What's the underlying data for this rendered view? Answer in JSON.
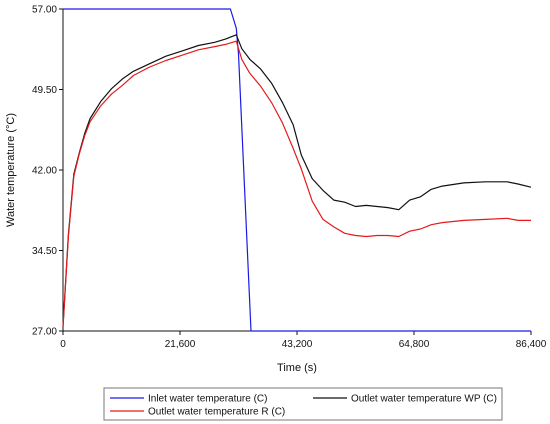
{
  "chart_data": {
    "type": "line",
    "xlabel": "Time (s)",
    "ylabel": "Water temperature (°C)",
    "xlim": [
      0,
      86400
    ],
    "ylim": [
      27.0,
      57.0
    ],
    "x_ticks": [
      0,
      21600,
      43200,
      64800,
      86400
    ],
    "x_tick_labels": [
      "0",
      "21,600",
      "43,200",
      "64,800",
      "86,400"
    ],
    "y_ticks": [
      27.0,
      34.5,
      42.0,
      49.5,
      57.0
    ],
    "y_tick_labels": [
      "27.00",
      "34.50",
      "42.00",
      "49.50",
      "57.00"
    ],
    "grid": false,
    "legend_position": "bottom",
    "series": [
      {
        "name": "Inlet water temperature (C)",
        "color": "#1a1ae6",
        "points": [
          [
            0,
            57.0
          ],
          [
            30900,
            57.0
          ],
          [
            32000,
            55.2
          ],
          [
            32400,
            52.8
          ],
          [
            34700,
            27.0
          ],
          [
            86400,
            27.0
          ]
        ]
      },
      {
        "name": "Outlet water temperature WP (C)",
        "color": "#111111",
        "points": [
          [
            0,
            27.4
          ],
          [
            1000,
            36.0
          ],
          [
            2000,
            41.6
          ],
          [
            3000,
            43.6
          ],
          [
            4000,
            45.4
          ],
          [
            5000,
            46.8
          ],
          [
            7000,
            48.4
          ],
          [
            9000,
            49.6
          ],
          [
            11000,
            50.5
          ],
          [
            13000,
            51.2
          ],
          [
            16000,
            51.9
          ],
          [
            19000,
            52.6
          ],
          [
            22000,
            53.1
          ],
          [
            25000,
            53.6
          ],
          [
            28000,
            53.9
          ],
          [
            30000,
            54.2
          ],
          [
            32000,
            54.6
          ],
          [
            33000,
            53.3
          ],
          [
            34500,
            52.3
          ],
          [
            36500,
            51.4
          ],
          [
            38500,
            50.1
          ],
          [
            40500,
            48.3
          ],
          [
            42500,
            46.2
          ],
          [
            44000,
            43.4
          ],
          [
            46000,
            41.2
          ],
          [
            48000,
            40.1
          ],
          [
            50000,
            39.2
          ],
          [
            52000,
            39.0
          ],
          [
            54000,
            38.6
          ],
          [
            56000,
            38.7
          ],
          [
            58000,
            38.6
          ],
          [
            60000,
            38.5
          ],
          [
            62000,
            38.3
          ],
          [
            64000,
            39.2
          ],
          [
            66000,
            39.5
          ],
          [
            68000,
            40.2
          ],
          [
            70000,
            40.5
          ],
          [
            74000,
            40.8
          ],
          [
            78000,
            40.9
          ],
          [
            82000,
            40.9
          ],
          [
            84000,
            40.7
          ],
          [
            86400,
            40.4
          ]
        ]
      },
      {
        "name": "Outlet water temperature R (C)",
        "color": "#e61a1a",
        "points": [
          [
            0,
            27.4
          ],
          [
            1000,
            35.8
          ],
          [
            2000,
            41.4
          ],
          [
            3000,
            43.5
          ],
          [
            4000,
            45.2
          ],
          [
            5000,
            46.5
          ],
          [
            7000,
            48.0
          ],
          [
            9000,
            49.1
          ],
          [
            11000,
            49.9
          ],
          [
            13000,
            50.8
          ],
          [
            16000,
            51.6
          ],
          [
            19000,
            52.2
          ],
          [
            22000,
            52.7
          ],
          [
            25000,
            53.2
          ],
          [
            28000,
            53.5
          ],
          [
            30000,
            53.7
          ],
          [
            32000,
            54.0
          ],
          [
            33000,
            52.3
          ],
          [
            34500,
            51.0
          ],
          [
            36500,
            49.8
          ],
          [
            38500,
            48.3
          ],
          [
            40500,
            46.4
          ],
          [
            42500,
            44.0
          ],
          [
            44000,
            42.1
          ],
          [
            46000,
            39.1
          ],
          [
            48000,
            37.4
          ],
          [
            50000,
            36.7
          ],
          [
            52000,
            36.1
          ],
          [
            54000,
            35.9
          ],
          [
            56000,
            35.8
          ],
          [
            58000,
            35.9
          ],
          [
            60000,
            35.9
          ],
          [
            62000,
            35.8
          ],
          [
            64000,
            36.3
          ],
          [
            66000,
            36.5
          ],
          [
            68000,
            36.9
          ],
          [
            70000,
            37.1
          ],
          [
            74000,
            37.3
          ],
          [
            78000,
            37.4
          ],
          [
            82000,
            37.5
          ],
          [
            84000,
            37.3
          ],
          [
            86400,
            37.3
          ]
        ]
      }
    ]
  }
}
